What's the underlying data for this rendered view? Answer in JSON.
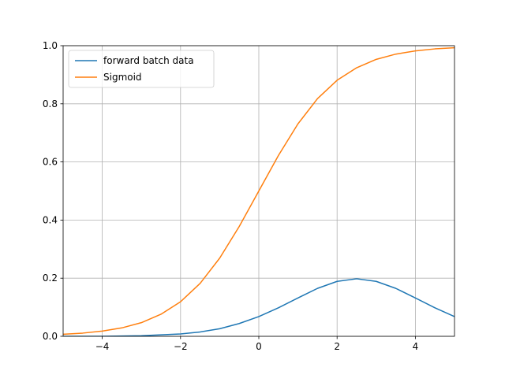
{
  "chart_data": {
    "type": "line",
    "title": "",
    "xlabel": "",
    "ylabel": "",
    "xlim": [
      -5,
      5
    ],
    "ylim": [
      0,
      1.0
    ],
    "grid": true,
    "legend_position": "upper-left",
    "x_ticks": [
      {
        "value": -4,
        "label": "−4"
      },
      {
        "value": -2,
        "label": "−2"
      },
      {
        "value": 0,
        "label": "0"
      },
      {
        "value": 2,
        "label": "2"
      },
      {
        "value": 4,
        "label": "4"
      }
    ],
    "y_ticks": [
      {
        "value": 0.0,
        "label": "0.0"
      },
      {
        "value": 0.2,
        "label": "0.2"
      },
      {
        "value": 0.4,
        "label": "0.4"
      },
      {
        "value": 0.6,
        "label": "0.6"
      },
      {
        "value": 0.8,
        "label": "0.8"
      },
      {
        "value": 1.0,
        "label": "1.0"
      }
    ],
    "x": [
      -5,
      -4.5,
      -4,
      -3.5,
      -3,
      -2.5,
      -2,
      -1.5,
      -1,
      -0.5,
      0,
      0.5,
      1,
      1.5,
      2,
      2.5,
      3,
      3.5,
      4,
      4.5,
      5
    ],
    "series": [
      {
        "name": "forward batch data",
        "color": "#1f77b4",
        "values": [
          0.0,
          0.0,
          0.0,
          0.001,
          0.002,
          0.005,
          0.008,
          0.015,
          0.026,
          0.044,
          0.068,
          0.098,
          0.132,
          0.165,
          0.189,
          0.198,
          0.189,
          0.165,
          0.132,
          0.098,
          0.068
        ]
      },
      {
        "name": "Sigmoid",
        "color": "#ff7f0e",
        "values": [
          0.007,
          0.011,
          0.018,
          0.029,
          0.047,
          0.076,
          0.119,
          0.182,
          0.269,
          0.378,
          0.5,
          0.622,
          0.731,
          0.818,
          0.881,
          0.924,
          0.953,
          0.971,
          0.982,
          0.989,
          0.993
        ]
      }
    ]
  }
}
